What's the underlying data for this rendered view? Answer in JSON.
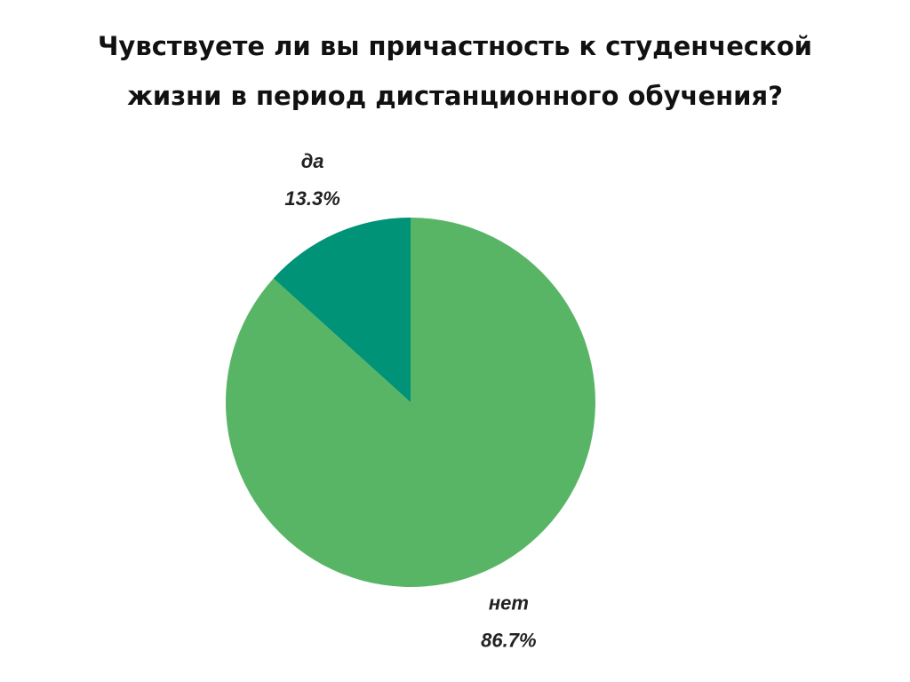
{
  "chart_data": {
    "type": "pie",
    "title": [
      "Чувствуете ли вы причастность к студенческой",
      "жизни в период дистанционного обучения?"
    ],
    "categories": [
      "нет",
      "да"
    ],
    "values": [
      86.7,
      13.3
    ],
    "value_labels": [
      "86.7%",
      "13.3%"
    ],
    "colors": [
      "#59b566",
      "#009378"
    ]
  }
}
